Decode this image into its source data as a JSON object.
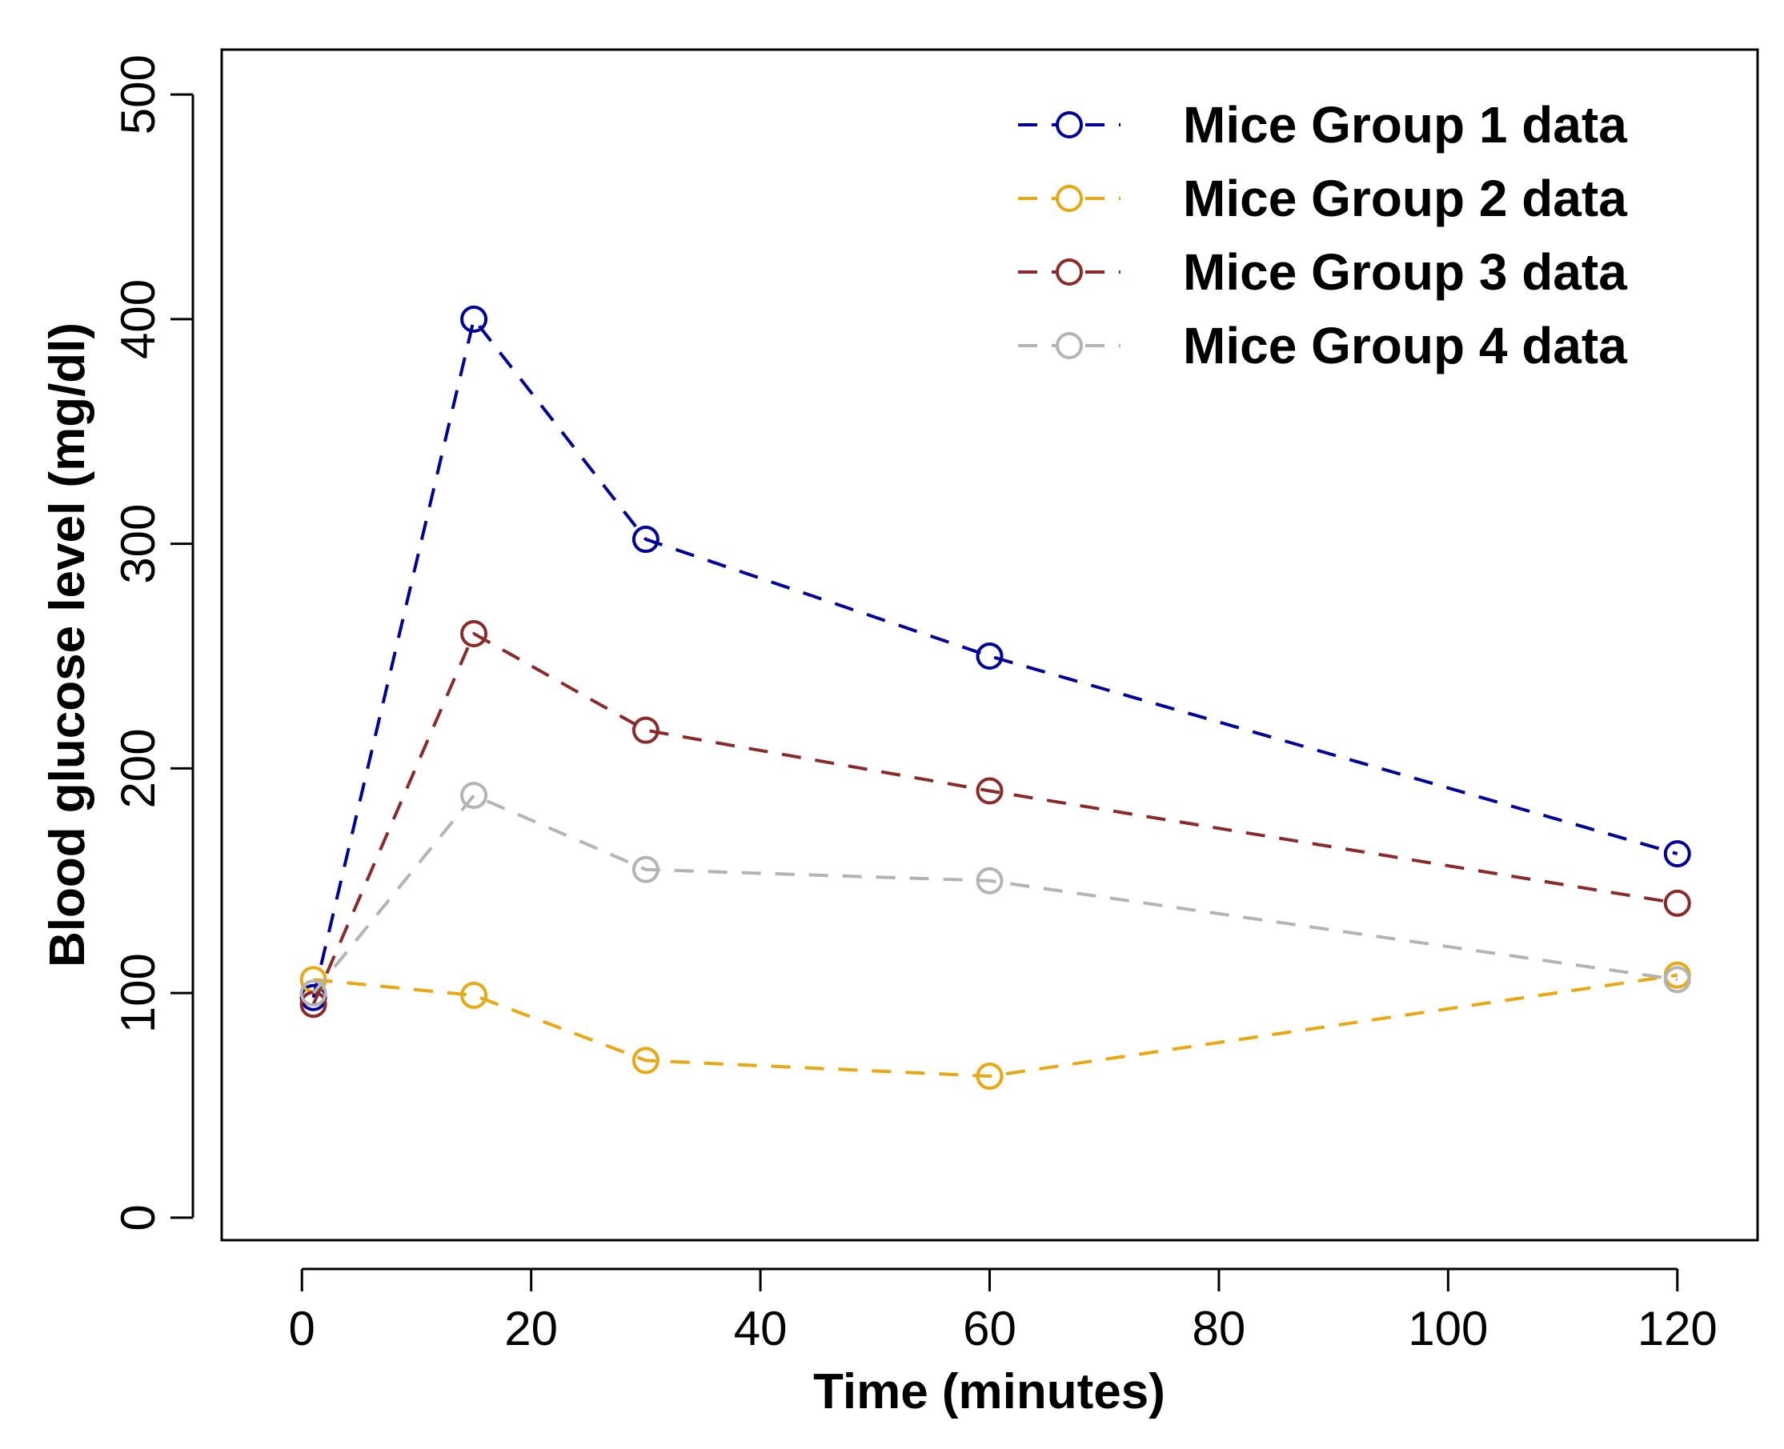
{
  "chart_data": {
    "type": "line",
    "title": "",
    "xlabel": "Time (minutes)",
    "ylabel": "Blood glucose level (mg/dl)",
    "xlim": [
      -7,
      127
    ],
    "ylim": [
      -10,
      520
    ],
    "xticks": [
      0,
      20,
      40,
      60,
      80,
      100,
      120
    ],
    "xtick_labels": [
      "0",
      "20",
      "40",
      "60",
      "80",
      "100",
      "120"
    ],
    "yticks": [
      0,
      100,
      200,
      300,
      400,
      500
    ],
    "ytick_labels": [
      "0",
      "100",
      "200",
      "300",
      "400",
      "500"
    ],
    "grid": false,
    "legend_position": "top-right",
    "x": [
      1,
      15,
      30,
      60,
      120
    ],
    "series": [
      {
        "name": "Mice Group 1 data",
        "color": "#00009a",
        "values": [
          98,
          400,
          302,
          250,
          162
        ]
      },
      {
        "name": "Mice Group 2 data",
        "color": "#e8a811",
        "values": [
          106,
          99,
          70,
          63,
          108
        ]
      },
      {
        "name": "Mice Group 3 data",
        "color": "#8b2a2a",
        "values": [
          95,
          260,
          217,
          190,
          140
        ]
      },
      {
        "name": "Mice Group 4 data",
        "color": "#b4b4b4",
        "values": [
          100,
          188,
          155,
          150,
          106
        ]
      }
    ]
  }
}
